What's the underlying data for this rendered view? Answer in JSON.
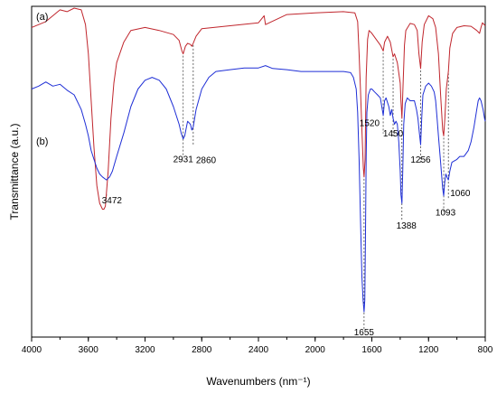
{
  "chart_data": {
    "type": "line",
    "xlabel": "Wavenumbers (nm⁻¹)",
    "ylabel": "Transmittance (a.u.)",
    "xlim": [
      4000,
      800
    ],
    "x_reversed": true,
    "x_ticks": [
      "4000",
      "3600",
      "3200",
      "2800",
      "2400",
      "2000",
      "1600",
      "1200",
      "800"
    ],
    "y_tick_labels": false,
    "grid": false,
    "legend": "none",
    "series": [
      {
        "name": "(a)",
        "color": "#c0262d",
        "points": [
          [
            4000,
            92.5
          ],
          [
            3900,
            93.5
          ],
          [
            3800,
            95.5
          ],
          [
            3750,
            95.2
          ],
          [
            3700,
            95.8
          ],
          [
            3650,
            95.5
          ],
          [
            3620,
            93.0
          ],
          [
            3600,
            88.0
          ],
          [
            3580,
            80.0
          ],
          [
            3560,
            72.0
          ],
          [
            3540,
            65.5
          ],
          [
            3520,
            62.5
          ],
          [
            3500,
            61.5
          ],
          [
            3490,
            61.5
          ],
          [
            3480,
            62.0
          ],
          [
            3460,
            68.0
          ],
          [
            3440,
            77.0
          ],
          [
            3420,
            83.0
          ],
          [
            3400,
            86.5
          ],
          [
            3350,
            90.0
          ],
          [
            3300,
            92.0
          ],
          [
            3200,
            92.5
          ],
          [
            3100,
            92.0
          ],
          [
            3000,
            91.3
          ],
          [
            2960,
            90.3
          ],
          [
            2940,
            88.5
          ],
          [
            2931,
            88.0
          ],
          [
            2915,
            89.3
          ],
          [
            2900,
            89.8
          ],
          [
            2880,
            89.6
          ],
          [
            2870,
            89.3
          ],
          [
            2860,
            89.8
          ],
          [
            2840,
            91.0
          ],
          [
            2800,
            92.3
          ],
          [
            2600,
            92.8
          ],
          [
            2400,
            93.3
          ],
          [
            2360,
            94.5
          ],
          [
            2350,
            93.0
          ],
          [
            2200,
            94.7
          ],
          [
            2000,
            95.0
          ],
          [
            1800,
            95.2
          ],
          [
            1720,
            95.0
          ],
          [
            1700,
            93.5
          ],
          [
            1690,
            88.0
          ],
          [
            1680,
            82.0
          ],
          [
            1670,
            75.0
          ],
          [
            1660,
            68.5
          ],
          [
            1655,
            67.0
          ],
          [
            1648,
            70.0
          ],
          [
            1640,
            84.0
          ],
          [
            1630,
            90.5
          ],
          [
            1620,
            92.0
          ],
          [
            1600,
            91.5
          ],
          [
            1570,
            90.5
          ],
          [
            1540,
            89.5
          ],
          [
            1520,
            88.5
          ],
          [
            1510,
            90.0
          ],
          [
            1490,
            91.0
          ],
          [
            1470,
            90.0
          ],
          [
            1450,
            87.5
          ],
          [
            1440,
            88.0
          ],
          [
            1420,
            86.5
          ],
          [
            1400,
            83.0
          ],
          [
            1395,
            80.0
          ],
          [
            1388,
            77.0
          ],
          [
            1380,
            82.5
          ],
          [
            1370,
            89.5
          ],
          [
            1360,
            92.0
          ],
          [
            1330,
            93.2
          ],
          [
            1300,
            93.0
          ],
          [
            1280,
            92.0
          ],
          [
            1268,
            88.0
          ],
          [
            1256,
            85.5
          ],
          [
            1245,
            90.0
          ],
          [
            1230,
            93.0
          ],
          [
            1200,
            94.5
          ],
          [
            1170,
            94.0
          ],
          [
            1150,
            92.5
          ],
          [
            1130,
            88.0
          ],
          [
            1115,
            81.0
          ],
          [
            1100,
            75.0
          ],
          [
            1093,
            74.0
          ],
          [
            1085,
            77.0
          ],
          [
            1075,
            82.0
          ],
          [
            1060,
            85.0
          ],
          [
            1050,
            89.0
          ],
          [
            1030,
            91.5
          ],
          [
            1000,
            92.5
          ],
          [
            950,
            92.8
          ],
          [
            900,
            92.7
          ],
          [
            860,
            92.0
          ],
          [
            840,
            91.5
          ],
          [
            830,
            92.5
          ],
          [
            820,
            93.3
          ],
          [
            800,
            92.8
          ]
        ]
      },
      {
        "name": "(b)",
        "color": "#1f2fd6",
        "points": [
          [
            4000,
            82.0
          ],
          [
            3950,
            82.5
          ],
          [
            3900,
            83.2
          ],
          [
            3850,
            82.5
          ],
          [
            3800,
            82.8
          ],
          [
            3750,
            81.8
          ],
          [
            3700,
            81.0
          ],
          [
            3650,
            78.5
          ],
          [
            3620,
            76.0
          ],
          [
            3600,
            74.0
          ],
          [
            3580,
            71.5
          ],
          [
            3560,
            70.0
          ],
          [
            3540,
            68.5
          ],
          [
            3520,
            67.5
          ],
          [
            3500,
            67.0
          ],
          [
            3472,
            66.5
          ],
          [
            3450,
            67.0
          ],
          [
            3430,
            68.0
          ],
          [
            3400,
            70.5
          ],
          [
            3350,
            74.5
          ],
          [
            3300,
            79.0
          ],
          [
            3250,
            82.0
          ],
          [
            3200,
            83.5
          ],
          [
            3150,
            84.0
          ],
          [
            3100,
            83.5
          ],
          [
            3050,
            82.0
          ],
          [
            3000,
            79.0
          ],
          [
            2960,
            76.0
          ],
          [
            2945,
            74.5
          ],
          [
            2931,
            73.5
          ],
          [
            2920,
            74.0
          ],
          [
            2900,
            76.5
          ],
          [
            2880,
            76.0
          ],
          [
            2870,
            75.0
          ],
          [
            2860,
            75.5
          ],
          [
            2840,
            78.5
          ],
          [
            2800,
            82.0
          ],
          [
            2750,
            84.0
          ],
          [
            2700,
            85.0
          ],
          [
            2600,
            85.3
          ],
          [
            2500,
            85.6
          ],
          [
            2400,
            85.6
          ],
          [
            2350,
            86.0
          ],
          [
            2300,
            85.5
          ],
          [
            2200,
            85.3
          ],
          [
            2100,
            85.0
          ],
          [
            2000,
            85.0
          ],
          [
            1900,
            85.0
          ],
          [
            1800,
            85.0
          ],
          [
            1750,
            84.8
          ],
          [
            1730,
            84.0
          ],
          [
            1710,
            82.0
          ],
          [
            1700,
            78.0
          ],
          [
            1690,
            70.0
          ],
          [
            1680,
            60.0
          ],
          [
            1670,
            50.0
          ],
          [
            1662,
            46.0
          ],
          [
            1655,
            44.0
          ],
          [
            1650,
            46.0
          ],
          [
            1645,
            56.0
          ],
          [
            1640,
            70.0
          ],
          [
            1635,
            78.0
          ],
          [
            1625,
            81.0
          ],
          [
            1610,
            82.0
          ],
          [
            1600,
            82.0
          ],
          [
            1580,
            81.5
          ],
          [
            1560,
            81.0
          ],
          [
            1540,
            80.5
          ],
          [
            1520,
            77.5
          ],
          [
            1510,
            80.0
          ],
          [
            1500,
            80.5
          ],
          [
            1480,
            79.0
          ],
          [
            1470,
            77.5
          ],
          [
            1460,
            78.5
          ],
          [
            1450,
            77.0
          ],
          [
            1440,
            76.0
          ],
          [
            1430,
            76.5
          ],
          [
            1420,
            76.0
          ],
          [
            1410,
            73.0
          ],
          [
            1400,
            68.0
          ],
          [
            1395,
            64.0
          ],
          [
            1388,
            62.5
          ],
          [
            1382,
            68.0
          ],
          [
            1375,
            76.0
          ],
          [
            1365,
            79.5
          ],
          [
            1350,
            80.5
          ],
          [
            1330,
            80.0
          ],
          [
            1300,
            80.0
          ],
          [
            1285,
            78.5
          ],
          [
            1275,
            77.0
          ],
          [
            1265,
            74.5
          ],
          [
            1256,
            72.5
          ],
          [
            1248,
            77.0
          ],
          [
            1240,
            81.0
          ],
          [
            1220,
            82.5
          ],
          [
            1200,
            83.0
          ],
          [
            1180,
            82.5
          ],
          [
            1160,
            81.5
          ],
          [
            1150,
            80.0
          ],
          [
            1140,
            77.0
          ],
          [
            1130,
            74.0
          ],
          [
            1115,
            69.5
          ],
          [
            1100,
            65.0
          ],
          [
            1093,
            63.8
          ],
          [
            1086,
            66.0
          ],
          [
            1078,
            67.5
          ],
          [
            1070,
            67.0
          ],
          [
            1060,
            66.5
          ],
          [
            1050,
            68.0
          ],
          [
            1035,
            69.5
          ],
          [
            1000,
            70.0
          ],
          [
            980,
            70.5
          ],
          [
            950,
            70.5
          ],
          [
            920,
            71.5
          ],
          [
            900,
            73.0
          ],
          [
            880,
            75.5
          ],
          [
            860,
            78.5
          ],
          [
            850,
            80.0
          ],
          [
            840,
            80.5
          ],
          [
            830,
            80.0
          ],
          [
            815,
            78.5
          ],
          [
            805,
            77.0
          ],
          [
            800,
            76.5
          ]
        ]
      }
    ],
    "annotations": [
      {
        "label": "3472",
        "x": 3472,
        "series": 1,
        "place": "below"
      },
      {
        "label": "2931",
        "x": 2931,
        "series": 1,
        "place": "below"
      },
      {
        "label": "2860",
        "x": 2860,
        "series": 1,
        "place": "right"
      },
      {
        "label": "1655",
        "x": 1655,
        "series": 1,
        "place": "below"
      },
      {
        "label": "1520",
        "x": 1520,
        "series": 1,
        "place": "left"
      },
      {
        "label": "1450",
        "x": 1450,
        "series": 1,
        "place": "below-near"
      },
      {
        "label": "1388",
        "x": 1388,
        "series": 1,
        "place": "below"
      },
      {
        "label": "1256",
        "x": 1256,
        "series": 1,
        "place": "below-near"
      },
      {
        "label": "1093",
        "x": 1093,
        "series": 1,
        "place": "below"
      },
      {
        "label": "1060",
        "x": 1060,
        "series": 1,
        "place": "right"
      }
    ],
    "drop_lines_at": [
      3472,
      2931,
      2860,
      1655,
      1520,
      1450,
      1388,
      1256,
      1093,
      1060
    ],
    "panel_labels": [
      "(a)",
      "(b)"
    ]
  }
}
